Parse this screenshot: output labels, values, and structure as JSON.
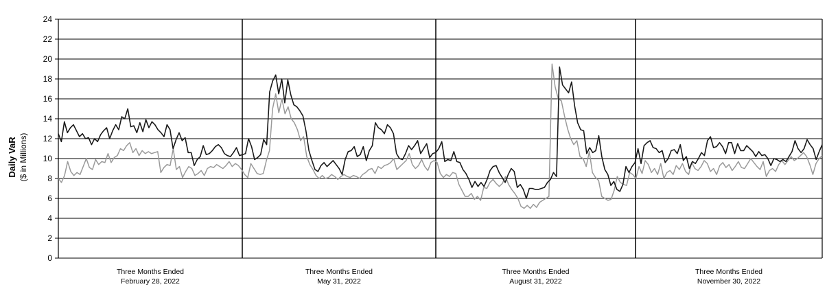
{
  "chart_data": {
    "type": "line",
    "title": "",
    "ylabel": "Daily VaR",
    "ylabel_sub": "($ in Millions)",
    "ylim": [
      0,
      24
    ],
    "yticks": [
      "0",
      "2",
      "4",
      "6",
      "8",
      "10",
      "12",
      "14",
      "16",
      "18",
      "20",
      "22",
      "24"
    ],
    "grid": true,
    "period_labels": [
      {
        "line1": "Three Months Ended",
        "line2": "February 28, 2022"
      },
      {
        "line1": "Three Months Ended",
        "line2": "May 31, 2022"
      },
      {
        "line1": "Three Months Ended",
        "line2": "August 31, 2022"
      },
      {
        "line1": "Three Months Ended",
        "line2": "November 30, 2022"
      }
    ],
    "colors": {
      "series_dark": "#1a1a1a",
      "series_light": "#9a9a9a",
      "grid": "#000000"
    },
    "series": [
      {
        "values": [
          12.5,
          11.7,
          13.7,
          12.6,
          13.1,
          13.4,
          12.8,
          12.2,
          12.5,
          12.0,
          12.1,
          11.4,
          12.0,
          11.7,
          12.4,
          12.8,
          13.1,
          12.0,
          12.8,
          13.4,
          12.9,
          14.2,
          14.0,
          15.0,
          13.2,
          13.3,
          12.6,
          13.6,
          12.7,
          13.9,
          13.1,
          13.7,
          13.4,
          12.9,
          12.6,
          12.2,
          13.4,
          12.9,
          11.0,
          11.9,
          12.6,
          11.8,
          12.1,
          10.6,
          10.6,
          9.3,
          9.9,
          10.2,
          11.3,
          10.4,
          10.5,
          10.8,
          11.2,
          11.4,
          11.1,
          10.5,
          10.3,
          10.2,
          10.6,
          11.1,
          10.3,
          10.4,
          10.5,
          12.0,
          11.2,
          9.9,
          10.1,
          10.4,
          11.9,
          11.4,
          16.7,
          17.8,
          18.4,
          16.5,
          18.0,
          15.6,
          17.9,
          16.4,
          15.4,
          15.2,
          14.8,
          14.3,
          12.8,
          10.8,
          9.8,
          8.9,
          8.7,
          9.3,
          9.6,
          9.2,
          9.5,
          9.8,
          9.4,
          9.0,
          8.4,
          9.9,
          10.7,
          10.8,
          11.2,
          10.2,
          10.4,
          11.2,
          9.8,
          10.8,
          11.3,
          13.6,
          13.1,
          12.9,
          12.5,
          13.4,
          13.1,
          12.5,
          10.5,
          10.0,
          9.9,
          10.5,
          11.3,
          10.9,
          11.3,
          11.8,
          10.5,
          11.0,
          11.5,
          10.1,
          10.5,
          10.6,
          11.0,
          11.7,
          9.7,
          9.9,
          9.8,
          10.7,
          9.7,
          9.6,
          8.9,
          8.5,
          7.9,
          7.1,
          7.7,
          7.2,
          7.6,
          7.2,
          7.9,
          8.8,
          9.2,
          9.3,
          8.6,
          8.1,
          7.6,
          8.4,
          9.0,
          8.7,
          7.1,
          7.4,
          6.9,
          6.0,
          7.0,
          7.0,
          6.9,
          6.9,
          7.0,
          7.1,
          7.6,
          7.9,
          8.6,
          8.2,
          19.2,
          17.4,
          17.0,
          16.6,
          17.7,
          15.3,
          13.6,
          12.9,
          12.8,
          10.5,
          11.1,
          10.6,
          10.8,
          12.3,
          10.2,
          8.9,
          8.4,
          7.3,
          7.7,
          6.9,
          6.7,
          7.4,
          9.2,
          8.6,
          9.2,
          9.6,
          11.0,
          9.5,
          11.3,
          11.6,
          11.8,
          11.1,
          11.0,
          10.6,
          10.8,
          9.6,
          10.0,
          10.8,
          10.9,
          10.5,
          11.4,
          9.8,
          10.2,
          9.0,
          9.7,
          9.5,
          10.0,
          10.6,
          10.3,
          11.8,
          12.2,
          11.1,
          11.2,
          11.6,
          11.2,
          10.5,
          11.6,
          11.6,
          10.5,
          11.5,
          10.8,
          10.8,
          11.3,
          11.0,
          10.7,
          10.2,
          10.7,
          10.3,
          10.4,
          10.0,
          9.3,
          10.0,
          9.9,
          9.7,
          9.9,
          9.7,
          10.2,
          10.7,
          11.8,
          11.0,
          10.6,
          11.0,
          11.9,
          11.4,
          11.0,
          9.9,
          10.7,
          11.4
        ]
      },
      {
        "values": [
          8.0,
          7.6,
          8.3,
          9.7,
          8.7,
          8.3,
          8.6,
          8.4,
          9.2,
          10.0,
          9.1,
          8.9,
          9.9,
          9.4,
          9.7,
          9.6,
          10.5,
          9.6,
          10.1,
          10.3,
          11.0,
          10.8,
          11.3,
          11.6,
          10.6,
          11.0,
          10.3,
          10.8,
          10.5,
          10.7,
          10.5,
          10.6,
          10.7,
          8.6,
          9.1,
          9.4,
          9.3,
          11.0,
          8.9,
          9.2,
          8.1,
          8.7,
          9.2,
          9.0,
          8.3,
          8.5,
          8.8,
          8.3,
          9.0,
          9.2,
          9.1,
          9.4,
          9.2,
          9.0,
          9.3,
          9.7,
          9.2,
          9.5,
          9.3,
          8.9,
          8.4,
          8.1,
          9.5,
          9.0,
          8.5,
          8.4,
          8.5,
          9.8,
          10.8,
          15.0,
          16.5,
          14.6,
          16.0,
          14.5,
          15.2,
          14.0,
          13.6,
          12.9,
          11.8,
          12.2,
          10.2,
          9.4,
          8.9,
          8.3,
          8.0,
          8.3,
          8.0,
          8.1,
          8.4,
          8.2,
          7.9,
          8.2,
          8.4,
          8.2,
          8.1,
          8.3,
          8.2,
          8.0,
          8.4,
          8.6,
          8.9,
          9.0,
          8.5,
          9.2,
          9.0,
          9.3,
          9.4,
          9.6,
          10.0,
          8.9,
          9.2,
          9.5,
          9.8,
          10.5,
          9.4,
          9.0,
          9.3,
          9.9,
          9.2,
          8.8,
          9.6,
          9.8,
          9.6,
          8.5,
          8.1,
          8.4,
          8.2,
          8.6,
          8.5,
          7.4,
          6.8,
          6.2,
          6.2,
          6.5,
          5.9,
          6.2,
          5.8,
          7.1,
          7.0,
          7.6,
          7.9,
          7.5,
          7.2,
          7.5,
          8.2,
          7.4,
          6.9,
          6.5,
          6.0,
          5.2,
          5.0,
          5.3,
          5.0,
          5.4,
          5.1,
          5.6,
          5.8,
          6.0,
          6.2,
          19.5,
          17.2,
          16.0,
          15.8,
          14.3,
          13.0,
          12.0,
          11.4,
          11.8,
          10.2,
          10.0,
          9.2,
          10.7,
          8.6,
          8.1,
          7.8,
          6.2,
          6.0,
          5.8,
          5.9,
          6.8,
          8.2,
          7.6,
          7.4,
          7.3,
          8.6,
          8.4,
          8.0,
          9.2,
          8.5,
          9.8,
          9.4,
          8.6,
          9.0,
          8.4,
          9.5,
          8.0,
          8.6,
          8.8,
          8.4,
          9.3,
          8.9,
          9.5,
          8.7,
          8.4,
          9.6,
          9.0,
          8.8,
          9.2,
          9.8,
          9.5,
          8.7,
          9.0,
          8.4,
          9.3,
          9.6,
          9.1,
          9.4,
          8.8,
          9.2,
          9.7,
          9.1,
          9.0,
          9.5,
          10.0,
          9.6,
          9.2,
          8.9,
          9.7,
          8.2,
          8.8,
          9.0,
          8.7,
          9.4,
          9.8,
          9.4,
          9.8,
          10.2,
          9.8,
          10.0,
          10.3,
          10.6,
          10.2,
          9.4,
          8.4,
          9.5,
          10.0,
          10.3
        ]
      }
    ]
  }
}
